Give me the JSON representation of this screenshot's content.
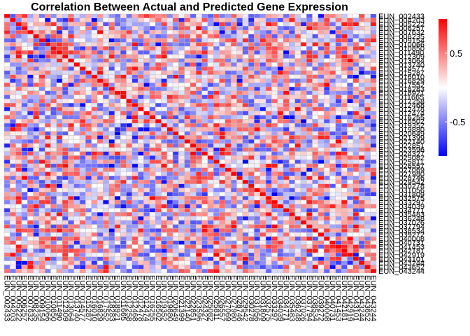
{
  "chart_data": {
    "type": "heatmap",
    "title": "Correlation Between Actual and Predicted Gene Expression",
    "row_labels": [
      "EUN_002433",
      "EUN_004203",
      "EUN_005222",
      "EUN_006257",
      "EUN_007632",
      "EUN_008235",
      "EUN_009154",
      "EUN_010066",
      "EUN_010850",
      "EUN_011490",
      "EUN_012309",
      "EUN_013064",
      "EUN_013740",
      "EUN_014577",
      "EUN_015287",
      "EUN_016010",
      "EUN_016829",
      "EUN_017552",
      "EUN_018283",
      "EUN_018921",
      "EUN_011665",
      "EUN_012258",
      "EUN_012468",
      "EUN_012478",
      "EUN_012474",
      "EUN_016255",
      "EUN_016502",
      "EUN_019352",
      "EUN_019880",
      "EUN_020649",
      "EUN_021399",
      "EUN_022140",
      "EUN_022851",
      "EUN_023596",
      "EUN_024327",
      "EUN_025082",
      "EUN_025811",
      "EUN_026557",
      "EUN_027069",
      "EUN_027980",
      "EUN_028746",
      "EUN_029542",
      "EUN_030278",
      "EUN_031056",
      "EUN_031809",
      "EUN_032575",
      "EUN_033297",
      "EUN_034039",
      "EUN_034771",
      "EUN_035483",
      "EUN_036248",
      "EUN_037026",
      "EUN_037794",
      "EUN_038534",
      "EUN_039272",
      "EUN_040008",
      "EUN_040731",
      "EUN_041453",
      "EUN_042181",
      "EUN_042919",
      "EUN_043101",
      "EUN_043244",
      "EUN_043652",
      "EUN_043244"
    ],
    "col_labels": [
      "EUN_002433",
      "EUN_004203",
      "EUN_005222",
      "EUN_006257",
      "EUN_007632",
      "EUN_008235",
      "EUN_009154",
      "EUN_010066",
      "EUN_010850",
      "EUN_011490",
      "EUN_012309",
      "EUN_013064",
      "EUN_013740",
      "EUN_014577",
      "EUN_015287",
      "EUN_016010",
      "EUN_016829",
      "EUN_017552",
      "EUN_018283",
      "EUN_018921",
      "EUN_011665",
      "EUN_012258",
      "EUN_012468",
      "EUN_012478",
      "EUN_012474",
      "EUN_016255",
      "EUN_016502",
      "EUN_019352",
      "EUN_019880",
      "EUN_020649",
      "EUN_021399",
      "EUN_022140",
      "EUN_022851",
      "EUN_023596",
      "EUN_024327",
      "EUN_025082",
      "EUN_025811",
      "EUN_026557",
      "EUN_027069",
      "EUN_027980",
      "EUN_028746",
      "EUN_029542",
      "EUN_030278",
      "EUN_031056",
      "EUN_031809",
      "EUN_032575",
      "EUN_033297",
      "EUN_034039",
      "EUN_034771",
      "EUN_035483",
      "EUN_036248",
      "EUN_037026",
      "EUN_037794",
      "EUN_038534",
      "EUN_039272",
      "EUN_040008",
      "EUN_040731",
      "EUN_041453",
      "EUN_042181",
      "EUN_042919",
      "EUN_043101",
      "EUN_043244",
      "EUN_043652",
      "EUN_043244"
    ],
    "n_rows": 64,
    "n_cols": 64,
    "diagonal": 1.0,
    "value_range": [
      -1,
      1
    ],
    "color_scale": {
      "low": "#0000ff",
      "mid": "#ffffff",
      "high": "#ff0000"
    },
    "colorbar_ticks": [
      0.5,
      -0.5
    ],
    "legend_placement": "right",
    "grid": true,
    "grid_color": "#bdbdbd"
  }
}
